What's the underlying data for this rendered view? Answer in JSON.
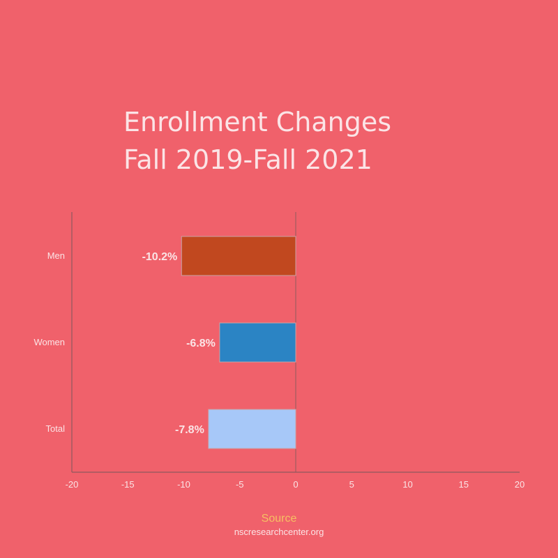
{
  "chart_data": {
    "type": "bar",
    "orientation": "horizontal",
    "title_lines": [
      "Enrollment Changes",
      "Fall 2019-Fall 2021"
    ],
    "categories": [
      "Men",
      "Women",
      "Total"
    ],
    "values": [
      -10.2,
      -6.8,
      -7.8
    ],
    "data_labels": [
      "-10.2%",
      "-6.8%",
      "-7.8%"
    ],
    "colors": [
      "#C1481F",
      "#2B84C4",
      "#A7C8F8"
    ],
    "xlim": [
      -20,
      20
    ],
    "xticks": [
      "-20",
      "-15",
      "-10",
      "-5",
      "0",
      "5",
      "10",
      "15",
      "20"
    ],
    "grid": false
  },
  "source": {
    "label": "Source",
    "url": "nscresearchcenter.org"
  },
  "colors": {
    "background": "#F0616B",
    "text": "#FBE4E6",
    "source_label": "#F6C062",
    "axis": "#8E5A5E"
  }
}
